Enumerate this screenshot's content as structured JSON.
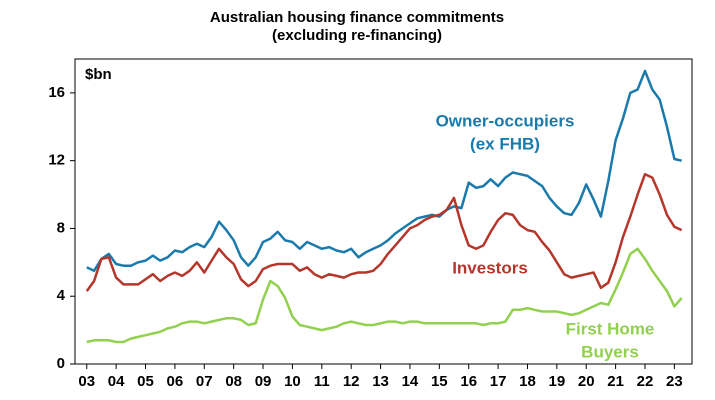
{
  "chart_data": {
    "type": "line",
    "title": [
      "Australian housing finance commitments",
      "(excluding re-financing)"
    ],
    "y_unit": "$bn",
    "x": [
      2003,
      2003.25,
      2003.5,
      2003.75,
      2004,
      2004.25,
      2004.5,
      2004.75,
      2005,
      2005.25,
      2005.5,
      2005.75,
      2006,
      2006.25,
      2006.5,
      2006.75,
      2007,
      2007.25,
      2007.5,
      2007.75,
      2008,
      2008.25,
      2008.5,
      2008.75,
      2009,
      2009.25,
      2009.5,
      2009.75,
      2010,
      2010.25,
      2010.5,
      2010.75,
      2011,
      2011.25,
      2011.5,
      2011.75,
      2012,
      2012.25,
      2012.5,
      2012.75,
      2013,
      2013.25,
      2013.5,
      2013.75,
      2014,
      2014.25,
      2014.5,
      2014.75,
      2015,
      2015.25,
      2015.5,
      2015.75,
      2016,
      2016.25,
      2016.5,
      2016.75,
      2017,
      2017.25,
      2017.5,
      2017.75,
      2018,
      2018.25,
      2018.5,
      2018.75,
      2019,
      2019.25,
      2019.5,
      2019.75,
      2020,
      2020.25,
      2020.5,
      2020.75,
      2021,
      2021.25,
      2021.5,
      2021.75,
      2022,
      2022.25,
      2022.5,
      2022.75,
      2023,
      2023.25
    ],
    "series": [
      {
        "name": [
          "Owner-occupiers",
          "(ex FHB)"
        ],
        "color": "#1a7aab",
        "values": [
          5.7,
          5.5,
          6.2,
          6.5,
          5.9,
          5.8,
          5.8,
          6.0,
          6.1,
          6.4,
          6.1,
          6.3,
          6.7,
          6.6,
          6.9,
          7.1,
          6.9,
          7.5,
          8.4,
          7.9,
          7.3,
          6.3,
          5.8,
          6.3,
          7.2,
          7.4,
          7.8,
          7.3,
          7.2,
          6.8,
          7.2,
          7.0,
          6.8,
          6.9,
          6.7,
          6.6,
          6.8,
          6.3,
          6.6,
          6.8,
          7.0,
          7.3,
          7.7,
          8.0,
          8.3,
          8.6,
          8.7,
          8.8,
          8.7,
          9.1,
          9.3,
          9.2,
          10.7,
          10.4,
          10.5,
          10.9,
          10.5,
          11.0,
          11.3,
          11.2,
          11.1,
          10.8,
          10.5,
          9.8,
          9.3,
          8.9,
          8.8,
          9.5,
          10.6,
          9.7,
          8.7,
          10.8,
          13.2,
          14.5,
          16.0,
          16.2,
          17.3,
          16.2,
          15.6,
          14.0,
          12.1,
          12.0
        ]
      },
      {
        "name": [
          "Investors"
        ],
        "color": "#b5372b",
        "values": [
          4.3,
          4.9,
          6.2,
          6.3,
          5.1,
          4.7,
          4.7,
          4.7,
          5.0,
          5.3,
          4.9,
          5.2,
          5.4,
          5.2,
          5.5,
          6.0,
          5.4,
          6.1,
          6.8,
          6.3,
          5.9,
          5.0,
          4.6,
          4.9,
          5.6,
          5.8,
          5.9,
          5.9,
          5.9,
          5.5,
          5.7,
          5.3,
          5.1,
          5.3,
          5.2,
          5.1,
          5.3,
          5.4,
          5.4,
          5.5,
          5.9,
          6.5,
          7.0,
          7.5,
          8.0,
          8.2,
          8.5,
          8.7,
          8.8,
          9.1,
          9.8,
          8.2,
          7.0,
          6.8,
          7.0,
          7.8,
          8.5,
          8.9,
          8.8,
          8.2,
          7.9,
          7.8,
          7.2,
          6.7,
          6.0,
          5.3,
          5.1,
          5.2,
          5.3,
          5.4,
          4.5,
          4.8,
          6.0,
          7.5,
          8.7,
          10.0,
          11.2,
          11.0,
          10.0,
          8.8,
          8.1,
          7.9
        ]
      },
      {
        "name": [
          "First Home",
          "Buyers"
        ],
        "color": "#92d050",
        "values": [
          1.3,
          1.4,
          1.4,
          1.4,
          1.3,
          1.3,
          1.5,
          1.6,
          1.7,
          1.8,
          1.9,
          2.1,
          2.2,
          2.4,
          2.5,
          2.5,
          2.4,
          2.5,
          2.6,
          2.7,
          2.7,
          2.6,
          2.3,
          2.4,
          3.8,
          4.9,
          4.6,
          3.9,
          2.8,
          2.3,
          2.2,
          2.1,
          2.0,
          2.1,
          2.2,
          2.4,
          2.5,
          2.4,
          2.3,
          2.3,
          2.4,
          2.5,
          2.5,
          2.4,
          2.5,
          2.5,
          2.4,
          2.4,
          2.4,
          2.4,
          2.4,
          2.4,
          2.4,
          2.4,
          2.3,
          2.4,
          2.4,
          2.5,
          3.2,
          3.2,
          3.3,
          3.2,
          3.1,
          3.1,
          3.1,
          3.0,
          2.9,
          3.0,
          3.2,
          3.4,
          3.6,
          3.5,
          4.4,
          5.4,
          6.5,
          6.8,
          6.2,
          5.5,
          4.9,
          4.3,
          3.4,
          3.9
        ]
      }
    ],
    "xlim": [
      2002.6,
      2023.6
    ],
    "xticks": [
      {
        "value": 2003,
        "label": "03"
      },
      {
        "value": 2004,
        "label": "04"
      },
      {
        "value": 2005,
        "label": "05"
      },
      {
        "value": 2006,
        "label": "06"
      },
      {
        "value": 2007,
        "label": "07"
      },
      {
        "value": 2008,
        "label": "08"
      },
      {
        "value": 2009,
        "label": "09"
      },
      {
        "value": 2010,
        "label": "10"
      },
      {
        "value": 2011,
        "label": "11"
      },
      {
        "value": 2012,
        "label": "12"
      },
      {
        "value": 2013,
        "label": "13"
      },
      {
        "value": 2014,
        "label": "14"
      },
      {
        "value": 2015,
        "label": "15"
      },
      {
        "value": 2016,
        "label": "16"
      },
      {
        "value": 2017,
        "label": "17"
      },
      {
        "value": 2018,
        "label": "18"
      },
      {
        "value": 2019,
        "label": "19"
      },
      {
        "value": 2020,
        "label": "20"
      },
      {
        "value": 2021,
        "label": "21"
      },
      {
        "value": 2022,
        "label": "22"
      },
      {
        "value": 2023,
        "label": "23"
      }
    ],
    "ylim": [
      0,
      18
    ],
    "yticks": [
      0,
      4,
      8,
      12,
      16
    ]
  }
}
